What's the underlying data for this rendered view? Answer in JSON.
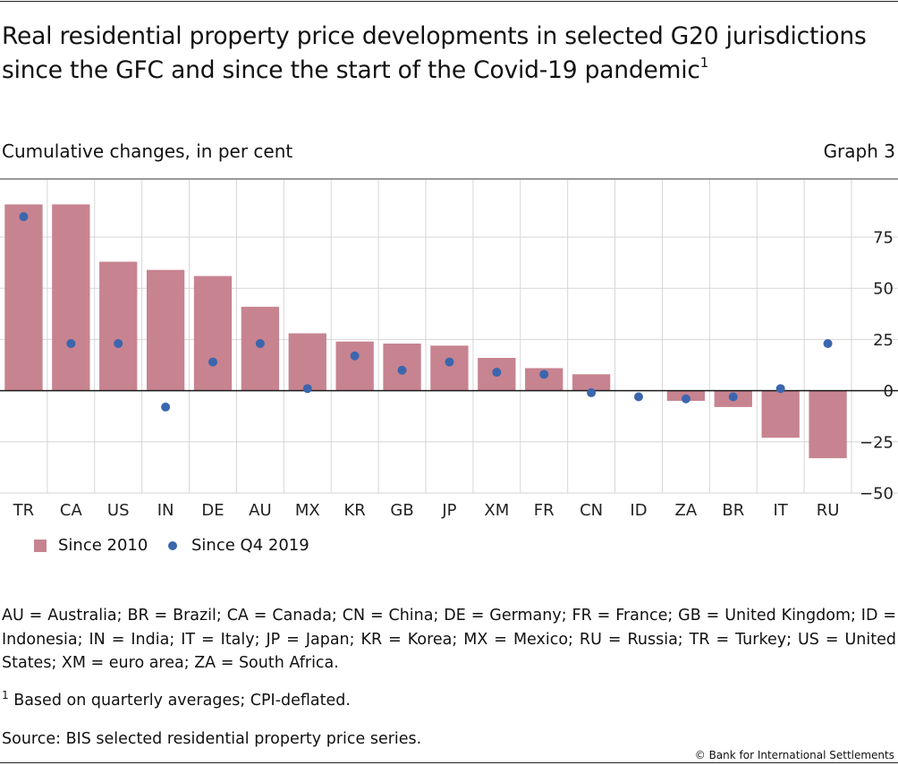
{
  "header": {
    "title": "Real residential property price developments in selected G20 jurisdictions since the GFC and since the start of the Covid-19 pandemic",
    "title_footnote_mark": "1",
    "subtitle": "Cumulative changes, in per cent",
    "graph_number": "Graph 3"
  },
  "colors": {
    "bar": "#c78390",
    "dot": "#3b66ad",
    "grid": "#d6d6d6",
    "chart_background": "#ffffff"
  },
  "chart_data": {
    "type": "bar",
    "categories": [
      "TR",
      "CA",
      "US",
      "IN",
      "DE",
      "AU",
      "MX",
      "KR",
      "GB",
      "JP",
      "XM",
      "FR",
      "CN",
      "ID",
      "ZA",
      "BR",
      "IT",
      "RU"
    ],
    "series": [
      {
        "name": "Since 2010",
        "type": "bar",
        "values": [
          91,
          91,
          63,
          59,
          56,
          41,
          28,
          24,
          23,
          22,
          16,
          11,
          8,
          0,
          -5,
          -8,
          -23,
          -33
        ]
      },
      {
        "name": "Since Q4 2019",
        "type": "scatter",
        "values": [
          85,
          23,
          23,
          -8,
          14,
          23,
          1,
          17,
          10,
          14,
          9,
          8,
          -1,
          -3,
          -4,
          -3,
          1,
          23
        ]
      }
    ],
    "ylim": [
      -50,
      103
    ],
    "yticks": [
      75,
      50,
      25,
      0,
      -25,
      -50
    ],
    "ytick_labels": [
      "75",
      "50",
      "25",
      "0",
      "−25",
      "−50"
    ],
    "xlabel": "",
    "ylabel": "",
    "grid": true,
    "legend_position": "bottom-left"
  },
  "legend": {
    "items": [
      {
        "label": "Since 2010",
        "marker": "square"
      },
      {
        "label": "Since Q4 2019",
        "marker": "dot"
      }
    ]
  },
  "notes": {
    "abbreviations": "AU = Australia; BR = Brazil; CA = Canada; CN = China; DE = Germany; FR = France; GB = United Kingdom; ID = Indonesia; IN = India; IT = Italy; JP = Japan; KR = Korea; MX = Mexico; RU = Russia; TR = Turkey; US = United States; XM = euro area; ZA = South Africa.",
    "footnote_mark": "1",
    "footnote_text": " Based on quarterly averages; CPI-deflated.",
    "source": "Source: BIS selected residential property price series.",
    "copyright": "© Bank for International Settlements"
  }
}
